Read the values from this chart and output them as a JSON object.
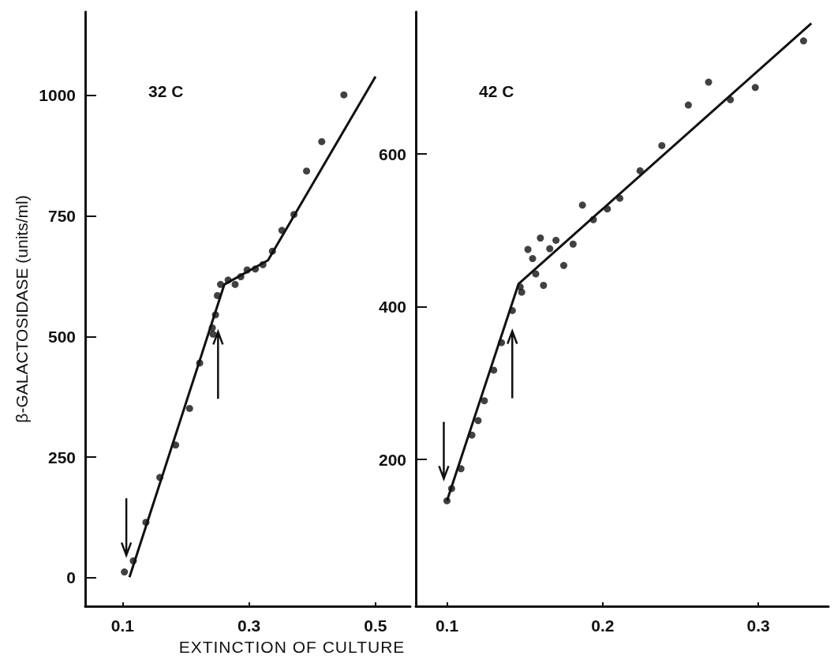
{
  "chart_data": [
    {
      "type": "scatter",
      "xlabel": "EXTINCTION OF CULTURE",
      "ylabel": "β-GALACTOSIDASE (units/ml)",
      "annotations": [
        "32 C"
      ],
      "xlim": [
        0.041,
        0.555
      ],
      "ylim": [
        -59,
        1173
      ],
      "xticks": [
        0.1,
        0.3,
        0.5
      ],
      "yticks": [
        0,
        250,
        500,
        750,
        1000
      ],
      "grid": false,
      "series": [
        {
          "marker": "circle",
          "color": "#111111",
          "x": [
            0.103,
            0.117,
            0.137,
            0.159,
            0.184,
            0.206,
            0.222,
            0.242,
            0.243,
            0.247,
            0.25,
            0.255,
            0.267,
            0.278,
            0.287,
            0.297,
            0.31,
            0.322,
            0.337,
            0.352,
            0.371,
            0.391,
            0.415,
            0.45
          ],
          "values": [
            12,
            35,
            115,
            208,
            275,
            351,
            445,
            518,
            505,
            545,
            585,
            608,
            617,
            608,
            624,
            638,
            640,
            649,
            677,
            720,
            753,
            843,
            904,
            1001
          ]
        },
        {
          "type": "line",
          "marker": "none",
          "color": "#111111",
          "x": [
            0.111,
            0.261,
            0.33,
            0.5
          ],
          "values": [
            1,
            608,
            658,
            1039
          ]
        }
      ]
    },
    {
      "type": "scatter",
      "annotations": [
        "42 C"
      ],
      "xlim": [
        0.08,
        0.345
      ],
      "ylim": [
        8,
        786
      ],
      "xticks": [
        0.1,
        0.2,
        0.3
      ],
      "yticks": [
        200,
        400,
        600
      ],
      "grid": false,
      "series": [
        {
          "marker": "circle",
          "color": "#111111",
          "x": [
            0.1,
            0.103,
            0.109,
            0.116,
            0.12,
            0.124,
            0.13,
            0.135,
            0.142,
            0.147,
            0.148,
            0.152,
            0.155,
            0.157,
            0.16,
            0.162,
            0.166,
            0.17,
            0.175,
            0.181,
            0.187,
            0.194,
            0.203,
            0.211,
            0.224,
            0.238,
            0.255,
            0.268,
            0.282,
            0.298,
            0.329
          ],
          "values": [
            146,
            162,
            188,
            232,
            251,
            277,
            317,
            353,
            395,
            426,
            419,
            475,
            463,
            443,
            490,
            428,
            476,
            487,
            454,
            482,
            533,
            514,
            528,
            542,
            578,
            611,
            664,
            694,
            671,
            687,
            748
          ]
        },
        {
          "type": "line",
          "marker": "none",
          "color": "#111111",
          "x": [
            0.1,
            0.146,
            0.334
          ],
          "values": [
            146,
            430,
            771
          ]
        }
      ]
    }
  ]
}
